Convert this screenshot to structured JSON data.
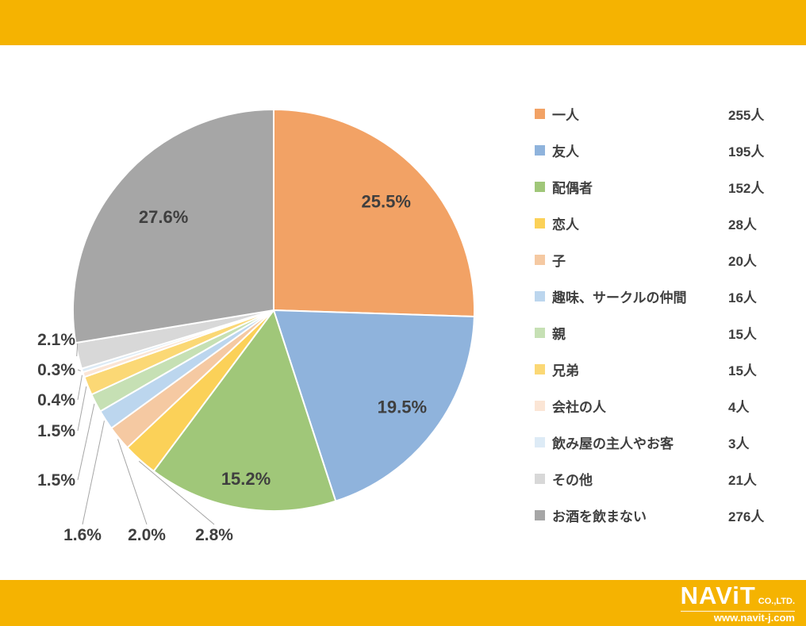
{
  "banner": {
    "color": "#F5B301"
  },
  "chart_data": {
    "type": "pie",
    "title": "",
    "legend_position": "right",
    "text_color": "#3F3F3F",
    "leader_line_color": "#A6A6A6",
    "series": [
      {
        "label": "一人",
        "count_label": "255人",
        "count": 255,
        "percent": 25.5,
        "pct_label": "25.5%",
        "color": "#F2A265"
      },
      {
        "label": "友人",
        "count_label": "195人",
        "count": 195,
        "percent": 19.5,
        "pct_label": "19.5%",
        "color": "#8FB3DC"
      },
      {
        "label": "配偶者",
        "count_label": "152人",
        "count": 152,
        "percent": 15.2,
        "pct_label": "15.2%",
        "color": "#A0C779"
      },
      {
        "label": "恋人",
        "count_label": "28人",
        "count": 28,
        "percent": 2.8,
        "pct_label": "2.8%",
        "color": "#FBD158"
      },
      {
        "label": "子",
        "count_label": "20人",
        "count": 20,
        "percent": 2.0,
        "pct_label": "2.0%",
        "color": "#F5C9A2"
      },
      {
        "label": "趣味、サークルの仲間",
        "count_label": "16人",
        "count": 16,
        "percent": 1.6,
        "pct_label": "1.6%",
        "color": "#BCD6EE"
      },
      {
        "label": "親",
        "count_label": "15人",
        "count": 15,
        "percent": 1.5,
        "pct_label": "1.5%",
        "color": "#C6E0B4"
      },
      {
        "label": "兄弟",
        "count_label": "15人",
        "count": 15,
        "percent": 1.5,
        "pct_label": "1.5%",
        "color": "#FBD875"
      },
      {
        "label": "会社の人",
        "count_label": "4人",
        "count": 4,
        "percent": 0.4,
        "pct_label": "0.4%",
        "color": "#FBE5D5"
      },
      {
        "label": "飲み屋の主人やお客",
        "count_label": "3人",
        "count": 3,
        "percent": 0.3,
        "pct_label": "0.3%",
        "color": "#DDEBF6"
      },
      {
        "label": "その他",
        "count_label": "21人",
        "count": 21,
        "percent": 2.1,
        "pct_label": "2.1%",
        "color": "#D8D8D8"
      },
      {
        "label": "お酒を飲まない",
        "count_label": "276人",
        "count": 276,
        "percent": 27.6,
        "pct_label": "27.6%",
        "color": "#A6A6A6"
      }
    ]
  },
  "footer": {
    "brand": "NAViT",
    "company_suffix": "CO.,LTD.",
    "url": "www.navit-j.com"
  }
}
